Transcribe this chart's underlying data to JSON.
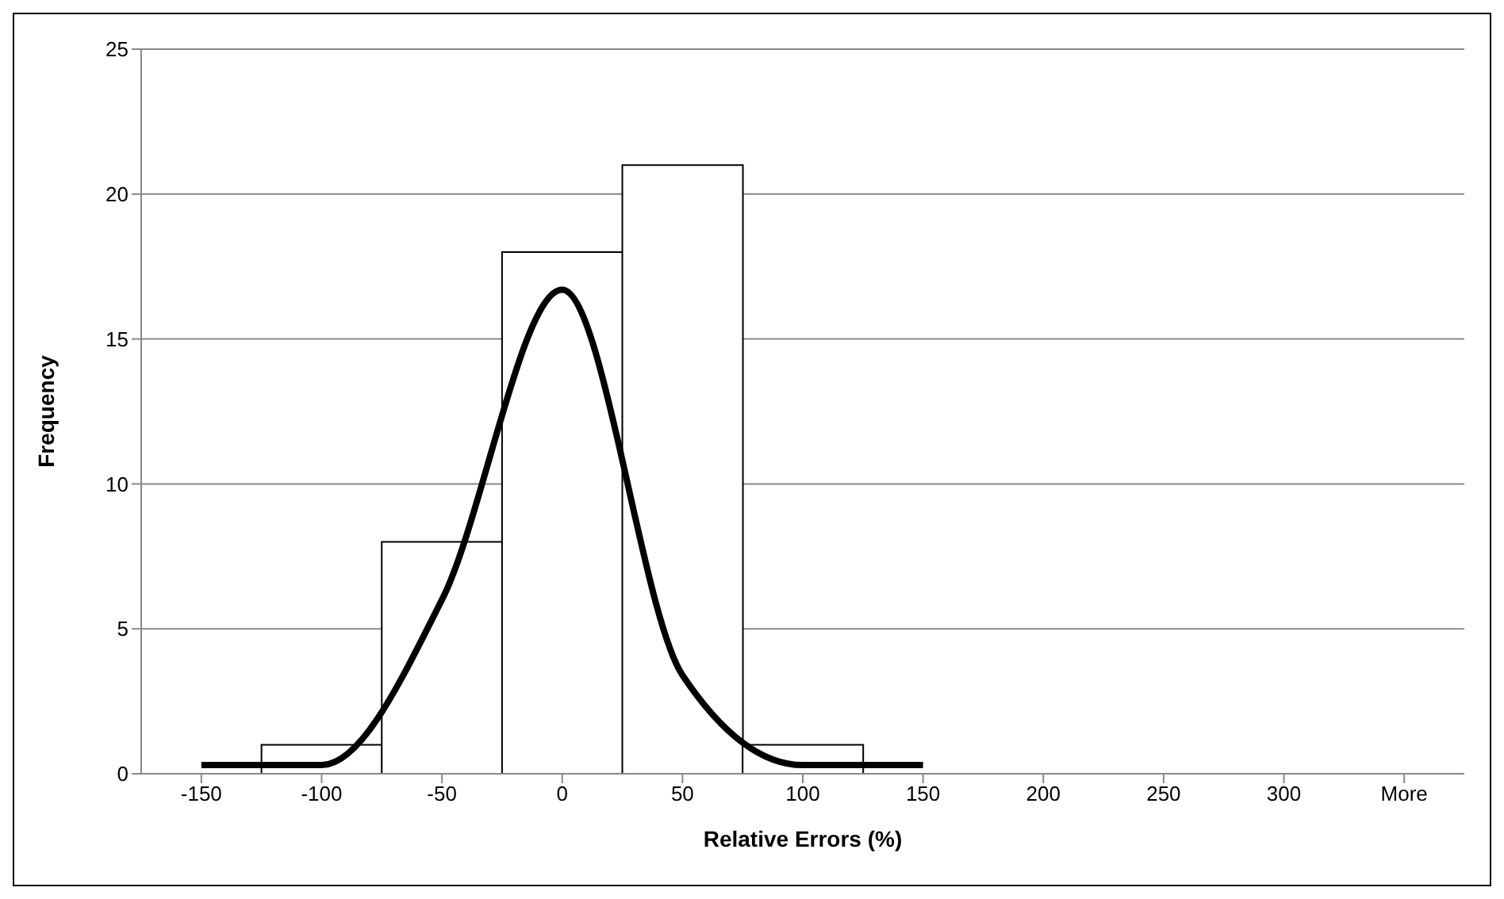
{
  "chart_data": {
    "type": "bar",
    "xlabel": "Relative Errors (%)",
    "ylabel": "Frequency",
    "categories": [
      "-150",
      "-100",
      "-50",
      "0",
      "50",
      "100",
      "150",
      "200",
      "250",
      "300",
      "More"
    ],
    "series": [
      {
        "color": "#ffffff",
        "values": [
          0,
          1,
          8,
          18,
          21,
          1,
          0,
          0,
          0,
          0,
          0
        ]
      },
      {
        "type": "line",
        "color": "#000000",
        "values": [
          0.3,
          0.3,
          6,
          16.7,
          3.4,
          0.3,
          0.3,
          null,
          null,
          null,
          null
        ]
      }
    ],
    "ylim": [
      0,
      25
    ],
    "yticks": [
      0,
      5,
      10,
      15,
      20,
      25
    ],
    "grid": "y",
    "legend": false
  }
}
